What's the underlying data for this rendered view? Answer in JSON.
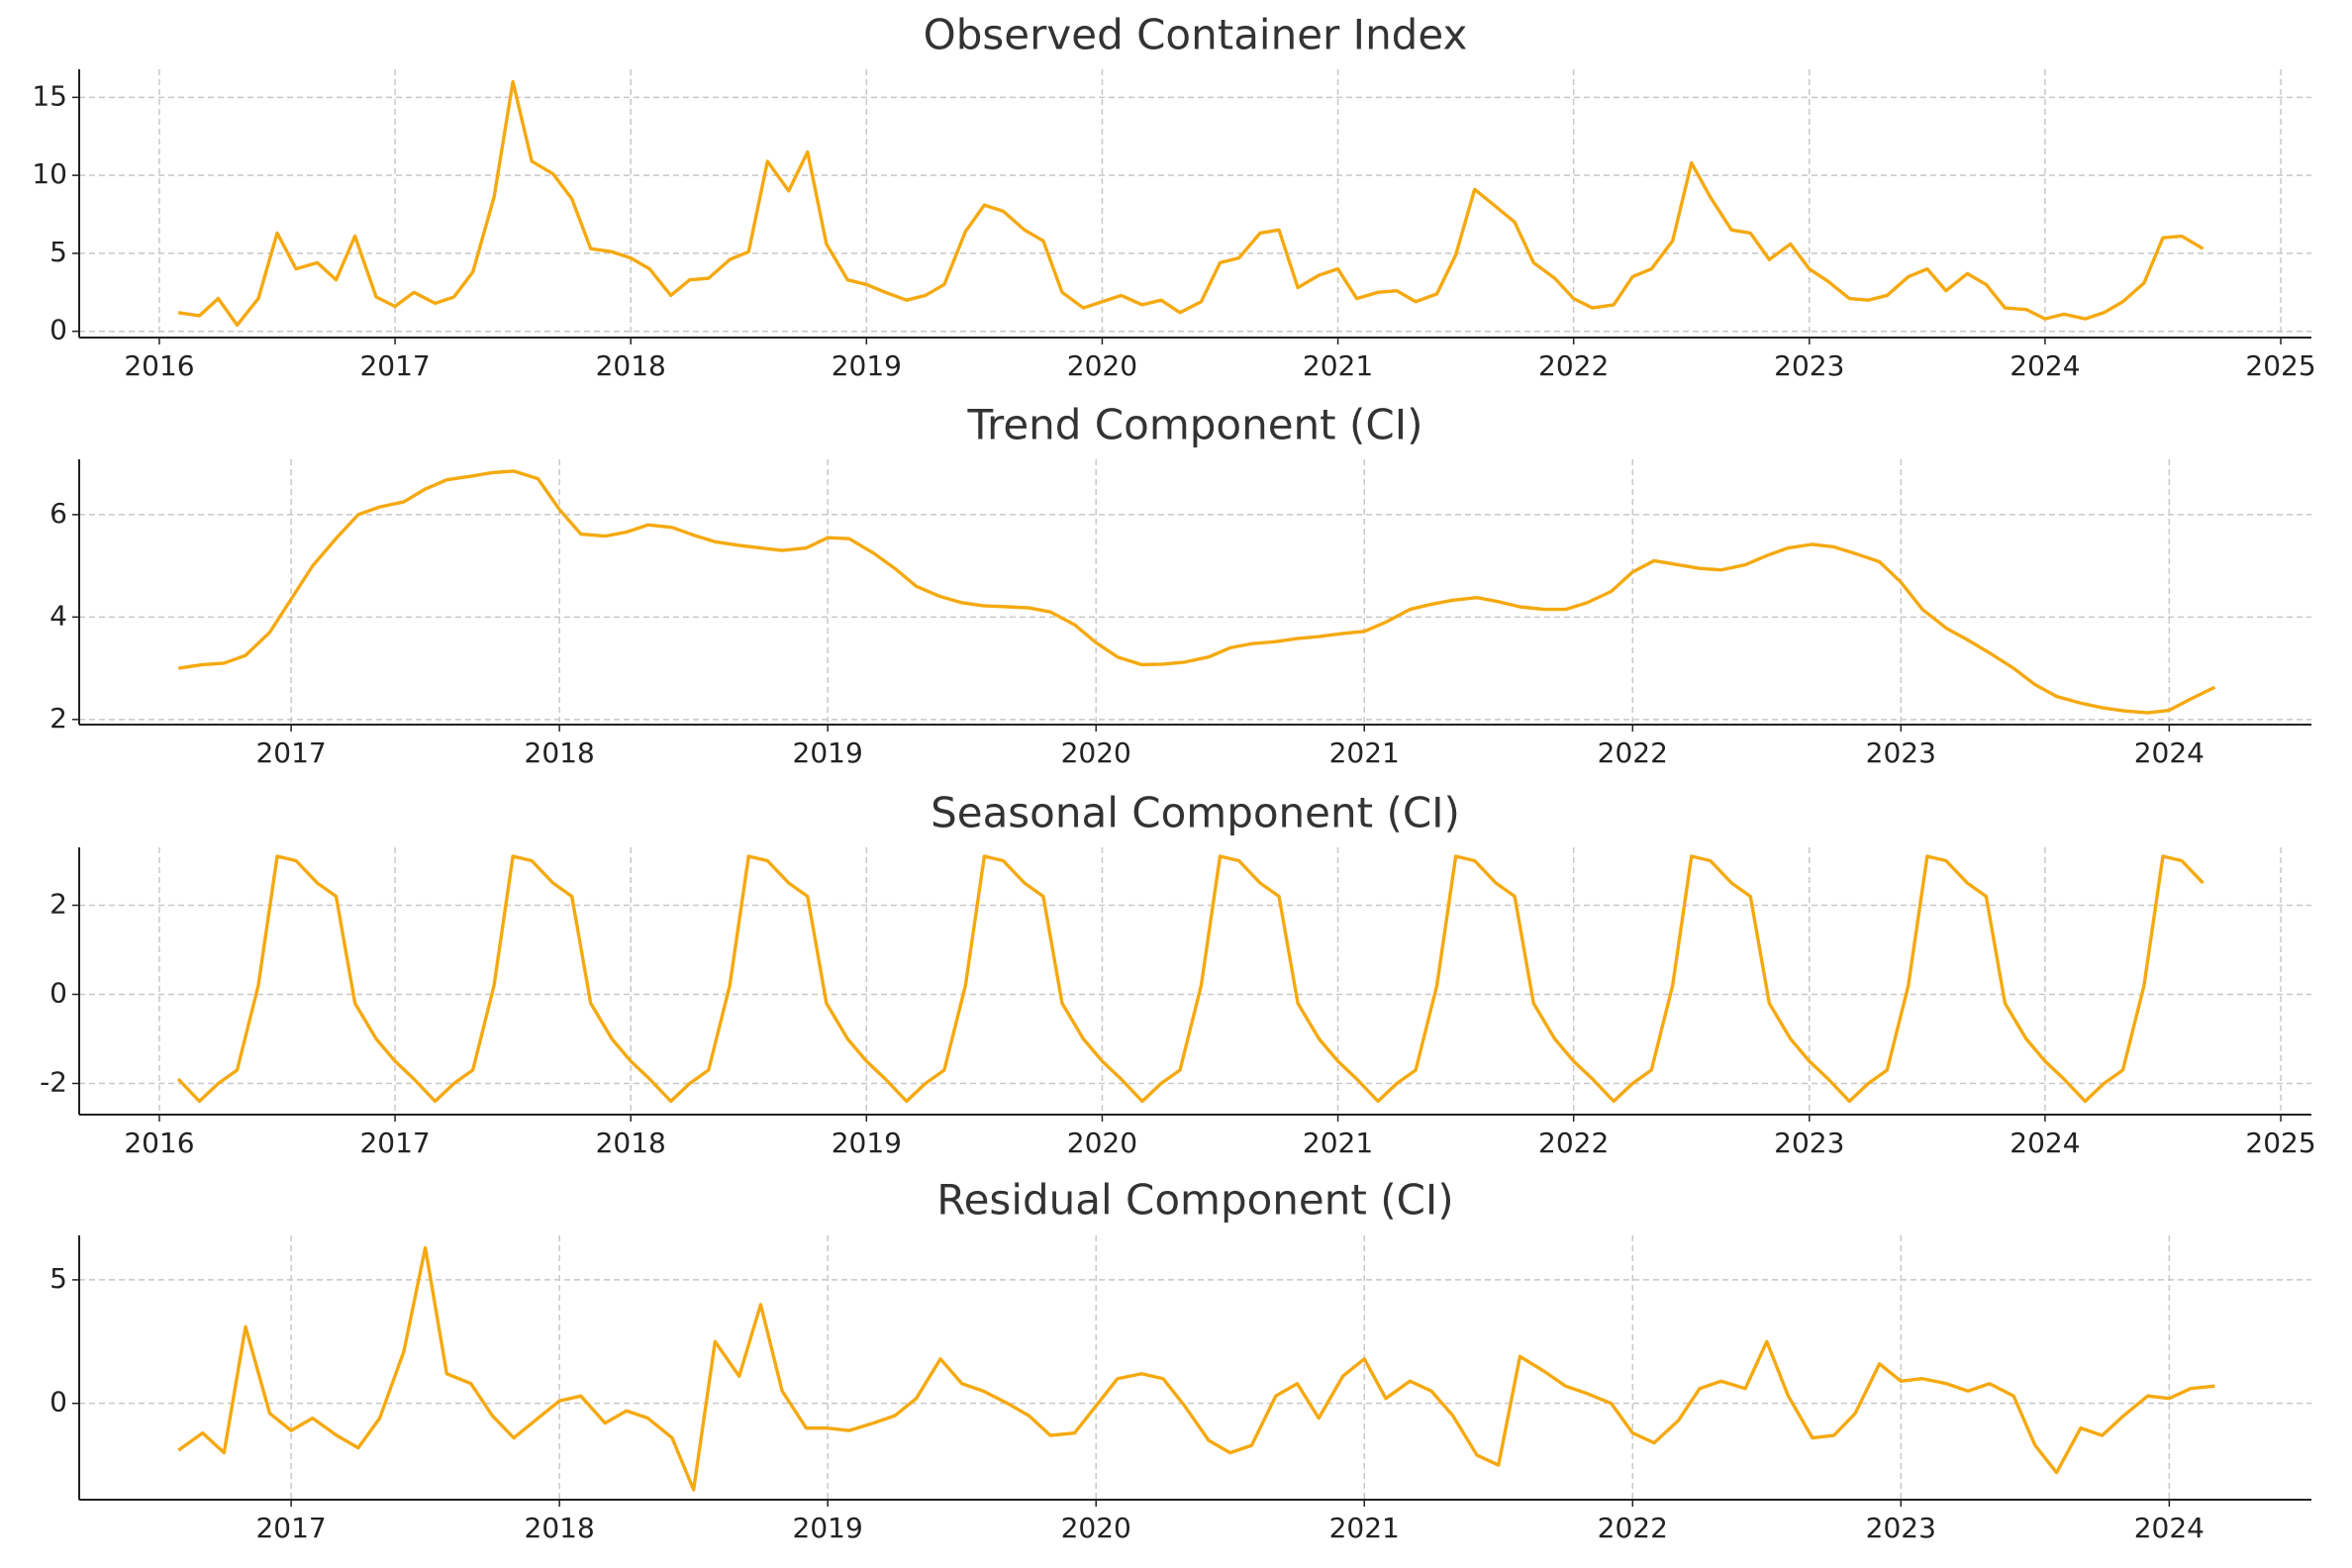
{
  "chart_data": [
    {
      "type": "line",
      "title": "Observed Container Index",
      "color": "#f5a90f",
      "grid": true,
      "xlim": [
        2015.66,
        2025.13
      ],
      "xticks": [
        2016,
        2017,
        2018,
        2019,
        2020,
        2021,
        2022,
        2023,
        2024,
        2025
      ],
      "ylim": [
        -0.4,
        16.8
      ],
      "yticks": [
        0,
        5,
        10,
        15
      ],
      "x": [
        2016.08,
        2016.17,
        2016.25,
        2016.33,
        2016.42,
        2016.5,
        2016.58,
        2016.67,
        2016.75,
        2016.83,
        2016.92,
        2017,
        2017.08,
        2017.17,
        2017.25,
        2017.33,
        2017.42,
        2017.5,
        2017.58,
        2017.67,
        2017.75,
        2017.83,
        2017.92,
        2018,
        2018.08,
        2018.17,
        2018.25,
        2018.33,
        2018.42,
        2018.5,
        2018.58,
        2018.67,
        2018.75,
        2018.83,
        2018.92,
        2019,
        2019.08,
        2019.17,
        2019.25,
        2019.33,
        2019.42,
        2019.5,
        2019.58,
        2019.67,
        2019.75,
        2019.83,
        2019.92,
        2020,
        2020.08,
        2020.17,
        2020.25,
        2020.33,
        2020.42,
        2020.5,
        2020.58,
        2020.67,
        2020.75,
        2020.83,
        2020.92,
        2021,
        2021.08,
        2021.17,
        2021.25,
        2021.33,
        2021.42,
        2021.5,
        2021.58,
        2021.67,
        2021.75,
        2021.83,
        2021.92,
        2022,
        2022.08,
        2022.17,
        2022.25,
        2022.33,
        2022.42,
        2022.5,
        2022.58,
        2022.67,
        2022.75,
        2022.83,
        2022.92,
        2023,
        2023.08,
        2023.17,
        2023.25,
        2023.33,
        2023.42,
        2023.5,
        2023.58,
        2023.67,
        2023.75,
        2023.83,
        2023.92,
        2024,
        2024.08,
        2024.17,
        2024.25,
        2024.33,
        2024.42,
        2024.5,
        2024.58,
        2024.67
      ],
      "values": [
        1.2,
        1.0,
        2.1,
        0.4,
        2.1,
        6.3,
        4.0,
        4.4,
        3.3,
        6.1,
        2.2,
        1.6,
        2.5,
        1.8,
        2.2,
        3.8,
        8.6,
        16.0,
        10.9,
        10.1,
        8.5,
        5.3,
        5.1,
        4.7,
        4.0,
        2.3,
        3.3,
        3.4,
        4.6,
        5.1,
        10.9,
        9.0,
        11.5,
        5.6,
        3.3,
        3.0,
        2.5,
        2.0,
        2.3,
        3.0,
        6.4,
        8.1,
        7.7,
        6.5,
        5.8,
        2.5,
        1.5,
        1.9,
        2.3,
        1.7,
        2.0,
        1.2,
        1.9,
        4.4,
        4.7,
        6.3,
        6.5,
        2.8,
        3.6,
        4.0,
        2.1,
        2.5,
        2.6,
        1.9,
        2.4,
        4.9,
        9.1,
        8.0,
        7.0,
        4.4,
        3.4,
        2.1,
        1.5,
        1.7,
        3.5,
        4.0,
        5.8,
        10.8,
        8.6,
        6.5,
        6.3,
        4.6,
        5.6,
        4.0,
        3.2,
        2.1,
        2.0,
        2.3,
        3.5,
        4.0,
        2.6,
        3.7,
        3.0,
        1.5,
        1.4,
        0.8,
        1.1,
        0.8,
        1.2,
        1.9,
        3.1,
        6.0,
        6.1,
        5.3
      ]
    },
    {
      "type": "line",
      "title": "Trend Component (CI)",
      "color": "#f5a90f",
      "grid": true,
      "xlim": [
        2016.21,
        2024.53
      ],
      "xticks": [
        2017,
        2018,
        2019,
        2020,
        2021,
        2022,
        2023,
        2024
      ],
      "ylim": [
        1.9,
        7.08
      ],
      "yticks": [
        2,
        4,
        6
      ],
      "x": [
        2016.58,
        2016.67,
        2016.75,
        2016.83,
        2016.92,
        2017,
        2017.08,
        2017.17,
        2017.25,
        2017.33,
        2017.42,
        2017.5,
        2017.58,
        2017.67,
        2017.75,
        2017.83,
        2017.92,
        2018,
        2018.08,
        2018.17,
        2018.25,
        2018.33,
        2018.42,
        2018.5,
        2018.58,
        2018.67,
        2018.75,
        2018.83,
        2018.92,
        2019,
        2019.08,
        2019.17,
        2019.25,
        2019.33,
        2019.42,
        2019.5,
        2019.58,
        2019.67,
        2019.75,
        2019.83,
        2019.92,
        2020,
        2020.08,
        2020.17,
        2020.25,
        2020.33,
        2020.42,
        2020.5,
        2020.58,
        2020.67,
        2020.75,
        2020.83,
        2020.92,
        2021,
        2021.08,
        2021.17,
        2021.25,
        2021.33,
        2021.42,
        2021.5,
        2021.58,
        2021.67,
        2021.75,
        2021.83,
        2021.92,
        2022,
        2022.08,
        2022.17,
        2022.25,
        2022.33,
        2022.42,
        2022.5,
        2022.58,
        2022.67,
        2022.75,
        2022.83,
        2022.92,
        2023,
        2023.08,
        2023.17,
        2023.25,
        2023.33,
        2023.42,
        2023.5,
        2023.58,
        2023.67,
        2023.75,
        2023.83,
        2023.92,
        2024,
        2024.08,
        2024.17
      ],
      "values": [
        3.0,
        3.07,
        3.1,
        3.25,
        3.7,
        4.35,
        5.0,
        5.55,
        6.0,
        6.15,
        6.25,
        6.5,
        6.68,
        6.75,
        6.82,
        6.85,
        6.7,
        6.1,
        5.62,
        5.58,
        5.66,
        5.8,
        5.75,
        5.6,
        5.47,
        5.4,
        5.35,
        5.3,
        5.35,
        5.55,
        5.53,
        5.25,
        4.95,
        4.6,
        4.4,
        4.28,
        4.22,
        4.2,
        4.18,
        4.1,
        3.85,
        3.5,
        3.22,
        3.07,
        3.08,
        3.12,
        3.22,
        3.4,
        3.48,
        3.52,
        3.58,
        3.62,
        3.68,
        3.72,
        3.9,
        4.15,
        4.25,
        4.33,
        4.38,
        4.3,
        4.2,
        4.15,
        4.15,
        4.28,
        4.5,
        4.88,
        5.1,
        5.02,
        4.95,
        4.92,
        5.02,
        5.2,
        5.35,
        5.42,
        5.37,
        5.24,
        5.08,
        4.68,
        4.15,
        3.78,
        3.55,
        3.3,
        3.0,
        2.68,
        2.45,
        2.32,
        2.23,
        2.17,
        2.13,
        2.18,
        2.4,
        2.63
      ]
    },
    {
      "type": "line",
      "title": "Seasonal Component (CI)",
      "color": "#f5a90f",
      "grid": true,
      "xlim": [
        2015.66,
        2025.13
      ],
      "xticks": [
        2016,
        2017,
        2018,
        2019,
        2020,
        2021,
        2022,
        2023,
        2024,
        2025
      ],
      "ylim": [
        -2.7,
        3.3
      ],
      "yticks": [
        -2,
        0,
        2
      ],
      "x": [
        2016.08,
        2016.17,
        2016.25,
        2016.33,
        2016.42,
        2016.5,
        2016.58,
        2016.67,
        2016.75,
        2016.83,
        2016.92,
        2017,
        2017.08,
        2017.17,
        2017.25,
        2017.33,
        2017.42,
        2017.5,
        2017.58,
        2017.67,
        2017.75,
        2017.83,
        2017.92,
        2018,
        2018.08,
        2018.17,
        2018.25,
        2018.33,
        2018.42,
        2018.5,
        2018.58,
        2018.67,
        2018.75,
        2018.83,
        2018.92,
        2019,
        2019.08,
        2019.17,
        2019.25,
        2019.33,
        2019.42,
        2019.5,
        2019.58,
        2019.67,
        2019.75,
        2019.83,
        2019.92,
        2020,
        2020.08,
        2020.17,
        2020.25,
        2020.33,
        2020.42,
        2020.5,
        2020.58,
        2020.67,
        2020.75,
        2020.83,
        2020.92,
        2021,
        2021.08,
        2021.17,
        2021.25,
        2021.33,
        2021.42,
        2021.5,
        2021.58,
        2021.67,
        2021.75,
        2021.83,
        2021.92,
        2022,
        2022.08,
        2022.17,
        2022.25,
        2022.33,
        2022.42,
        2022.5,
        2022.58,
        2022.67,
        2022.75,
        2022.83,
        2022.92,
        2023,
        2023.08,
        2023.17,
        2023.25,
        2023.33,
        2023.42,
        2023.5,
        2023.58,
        2023.67,
        2023.75,
        2023.83,
        2023.92,
        2024,
        2024.08,
        2024.17,
        2024.25,
        2024.33,
        2024.42,
        2024.5,
        2024.58,
        2024.67
      ],
      "values": [
        -1.9,
        -2.4,
        -2.0,
        -1.7,
        0.2,
        3.1,
        3.0,
        2.5,
        2.2,
        -0.2,
        -1.0,
        -1.5,
        -1.9,
        -2.4,
        -2.0,
        -1.7,
        0.2,
        3.1,
        3.0,
        2.5,
        2.2,
        -0.2,
        -1.0,
        -1.5,
        -1.9,
        -2.4,
        -2.0,
        -1.7,
        0.2,
        3.1,
        3.0,
        2.5,
        2.2,
        -0.2,
        -1.0,
        -1.5,
        -1.9,
        -2.4,
        -2.0,
        -1.7,
        0.2,
        3.1,
        3.0,
        2.5,
        2.2,
        -0.2,
        -1.0,
        -1.5,
        -1.9,
        -2.4,
        -2.0,
        -1.7,
        0.2,
        3.1,
        3.0,
        2.5,
        2.2,
        -0.2,
        -1.0,
        -1.5,
        -1.9,
        -2.4,
        -2.0,
        -1.7,
        0.2,
        3.1,
        3.0,
        2.5,
        2.2,
        -0.2,
        -1.0,
        -1.5,
        -1.9,
        -2.4,
        -2.0,
        -1.7,
        0.2,
        3.1,
        3.0,
        2.5,
        2.2,
        -0.2,
        -1.0,
        -1.5,
        -1.9,
        -2.4,
        -2.0,
        -1.7,
        0.2,
        3.1,
        3.0,
        2.5,
        2.2,
        -0.2,
        -1.0,
        -1.5,
        -1.9,
        -2.4,
        -2.0,
        -1.7,
        0.2,
        3.1,
        3.0,
        2.5
      ]
    },
    {
      "type": "line",
      "title": "Residual Component (CI)",
      "color": "#f5a90f",
      "grid": true,
      "xlim": [
        2016.21,
        2024.53
      ],
      "xticks": [
        2017,
        2018,
        2019,
        2020,
        2021,
        2022,
        2023,
        2024
      ],
      "ylim": [
        -3.9,
        6.8
      ],
      "yticks": [
        0,
        5
      ],
      "x": [
        2016.58,
        2016.67,
        2016.75,
        2016.83,
        2016.92,
        2017,
        2017.08,
        2017.17,
        2017.25,
        2017.33,
        2017.42,
        2017.5,
        2017.58,
        2017.67,
        2017.75,
        2017.83,
        2017.92,
        2018,
        2018.08,
        2018.17,
        2018.25,
        2018.33,
        2018.42,
        2018.5,
        2018.58,
        2018.67,
        2018.75,
        2018.83,
        2018.92,
        2019,
        2019.08,
        2019.17,
        2019.25,
        2019.33,
        2019.42,
        2019.5,
        2019.58,
        2019.67,
        2019.75,
        2019.83,
        2019.92,
        2020,
        2020.08,
        2020.17,
        2020.25,
        2020.33,
        2020.42,
        2020.5,
        2020.58,
        2020.67,
        2020.75,
        2020.83,
        2020.92,
        2021,
        2021.08,
        2021.17,
        2021.25,
        2021.33,
        2021.42,
        2021.5,
        2021.58,
        2021.67,
        2021.75,
        2021.83,
        2021.92,
        2022,
        2022.08,
        2022.17,
        2022.25,
        2022.33,
        2022.42,
        2022.5,
        2022.58,
        2022.67,
        2022.75,
        2022.83,
        2022.92,
        2023,
        2023.08,
        2023.17,
        2023.25,
        2023.33,
        2023.42,
        2023.5,
        2023.58,
        2023.67,
        2023.75,
        2023.83,
        2023.92,
        2024,
        2024.08,
        2024.17
      ],
      "values": [
        -1.9,
        -1.2,
        -2.0,
        3.1,
        -0.4,
        -1.1,
        -0.6,
        -1.3,
        -1.8,
        -0.6,
        2.1,
        6.3,
        1.2,
        0.8,
        -0.5,
        -1.4,
        -0.6,
        0.1,
        0.3,
        -0.8,
        -0.3,
        -0.6,
        -1.4,
        -3.5,
        2.5,
        1.1,
        4.0,
        0.5,
        -1.0,
        -1.0,
        -1.1,
        -0.8,
        -0.5,
        0.2,
        1.8,
        0.8,
        0.5,
        0.0,
        -0.5,
        -1.3,
        -1.2,
        -0.1,
        1.0,
        1.2,
        1.0,
        -0.1,
        -1.5,
        -2.0,
        -1.7,
        0.3,
        0.8,
        -0.6,
        1.1,
        1.8,
        0.2,
        0.9,
        0.5,
        -0.5,
        -2.1,
        -2.5,
        1.9,
        1.3,
        0.7,
        0.4,
        0.0,
        -1.2,
        -1.6,
        -0.7,
        0.6,
        0.9,
        0.6,
        2.5,
        0.3,
        -1.4,
        -1.3,
        -0.4,
        1.6,
        0.9,
        1.0,
        0.8,
        0.5,
        0.8,
        0.3,
        -1.7,
        -2.8,
        -1.0,
        -1.3,
        -0.5,
        0.3,
        0.2,
        0.6,
        0.7
      ]
    }
  ]
}
